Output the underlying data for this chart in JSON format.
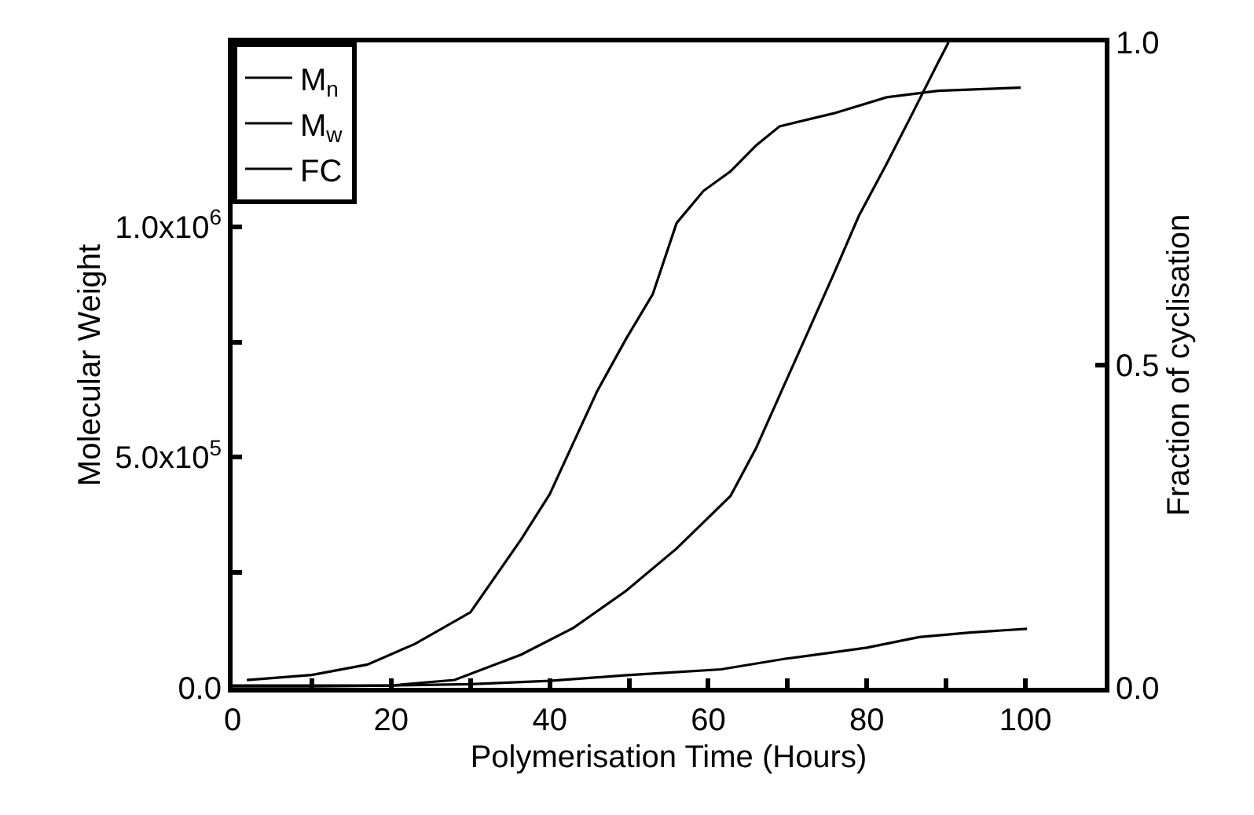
{
  "chart_data": {
    "type": "line",
    "xlabel": "Polymerisation Time (Hours)",
    "ylabel": "Molecular Weight",
    "y2label": "Fraction of cyclisation",
    "xlim": [
      0,
      110
    ],
    "xticks": [
      0,
      {
        "value": 10,
        "label": null
      },
      20,
      {
        "value": 30,
        "label": null
      },
      40,
      {
        "value": 50,
        "label": null
      },
      60,
      {
        "value": 70,
        "label": null
      },
      80,
      {
        "value": 90,
        "label": null
      },
      100
    ],
    "ylim": [
      0,
      1400000
    ],
    "yticks": [
      {
        "value": 0,
        "label": "0.0"
      },
      {
        "value": 250000,
        "label": null
      },
      {
        "value": 500000,
        "label": "5.0x10$^{5}$"
      },
      {
        "value": 750000,
        "label": null
      },
      {
        "value": 1000000,
        "label": "1.0x10$^{6}$"
      }
    ],
    "y2lim": [
      0,
      1
    ],
    "y2ticks": [
      {
        "value": 0,
        "label": "0.0"
      },
      {
        "value": 0.5,
        "label": "0.5"
      },
      {
        "value": 1,
        "label": "1.0"
      }
    ],
    "legend": "top left",
    "grid": false,
    "marker": "none",
    "line_style": "solid",
    "series": [
      {
        "name": "M$_{n}$",
        "color": "#000000",
        "x": [
          0,
          10,
          20,
          30,
          40,
          49.4,
          55,
          61.6,
          69.7,
          75,
          80,
          86.6,
          93,
          100.2
        ],
        "values": [
          5000,
          5000,
          5000,
          8000,
          15000,
          27000,
          33000,
          40000,
          63000,
          75000,
          87000,
          110000,
          120000,
          128000
        ]
      },
      {
        "name": "M$_{w}$",
        "color": "#000000",
        "x": [
          0,
          10,
          20,
          28,
          36.4,
          43,
          49.6,
          56,
          62.8,
          66,
          69.3,
          72.6,
          75.8,
          79,
          82.5,
          85.6,
          89,
          90.3
        ],
        "values": [
          3000,
          3000,
          5000,
          17000,
          72000,
          130000,
          210000,
          302000,
          416000,
          519000,
          646000,
          773000,
          897000,
          1024000,
          1137000,
          1241000,
          1357000,
          1400000
        ]
      },
      {
        "name": "FC",
        "color": "#000000",
        "axis": "y2",
        "x": [
          1.8,
          10,
          17,
          23,
          30,
          36.4,
          40,
          43,
          46,
          49.6,
          53,
          56,
          59.4,
          62.8,
          66,
          69,
          75.8,
          82.5,
          89,
          99.4
        ],
        "values": [
          0.012,
          0.02,
          0.036,
          0.068,
          0.117,
          0.23,
          0.3,
          0.38,
          0.46,
          0.54,
          0.61,
          0.72,
          0.77,
          0.8,
          0.84,
          0.87,
          0.89,
          0.915,
          0.925,
          0.93
        ]
      }
    ]
  }
}
